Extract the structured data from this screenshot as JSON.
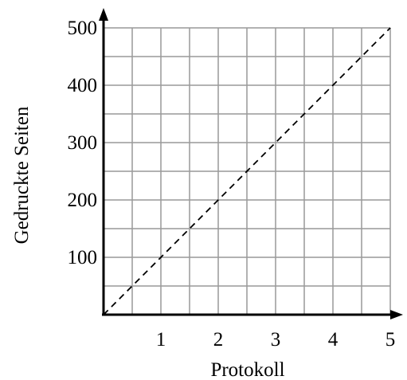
{
  "chart_data": {
    "type": "line",
    "xlabel": "Protokoll",
    "ylabel": "Gedruckte Seiten",
    "xlim": [
      0,
      5
    ],
    "ylim": [
      0,
      500
    ],
    "x_ticks": [
      "1",
      "2",
      "3",
      "4",
      "5"
    ],
    "y_ticks": [
      "100",
      "200",
      "300",
      "400",
      "500"
    ],
    "x_tick_values": [
      1,
      2,
      3,
      4,
      5
    ],
    "y_tick_values": [
      100,
      200,
      300,
      400,
      500
    ],
    "grid": true,
    "grid_x_step": 0.5,
    "grid_y_step": 50,
    "series": [
      {
        "line_style": "dashed",
        "color": "#000000",
        "x": [
          0,
          5
        ],
        "y": [
          0,
          500
        ]
      }
    ],
    "colors": {
      "grid": "#999999",
      "axis": "#000000"
    }
  }
}
